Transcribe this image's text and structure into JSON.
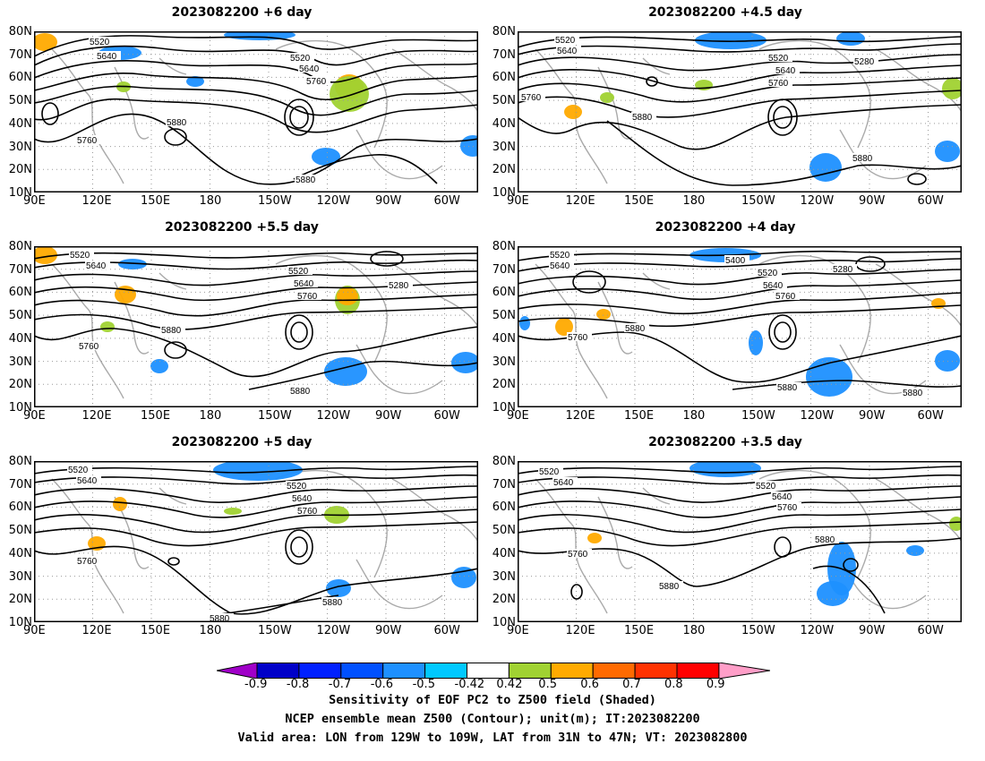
{
  "panels": [
    {
      "title": "2023082200 +6 day"
    },
    {
      "title": "2023082200 +4.5 day"
    },
    {
      "title": "2023082200 +5.5 day"
    },
    {
      "title": "2023082200 +4 day"
    },
    {
      "title": "2023082200 +5 day"
    },
    {
      "title": "2023082200 +3.5 day"
    }
  ],
  "axes": {
    "lat_labels": [
      "80N",
      "70N",
      "60N",
      "50N",
      "40N",
      "30N",
      "20N",
      "10N"
    ],
    "lon_labels": [
      "90E",
      "120E",
      "150E",
      "180",
      "150W",
      "120W",
      "90W",
      "60W"
    ]
  },
  "contour_labels": {
    "p0": [
      "5520",
      "5640",
      "5520",
      "5640",
      "5760",
      "5880",
      "5760",
      "5880"
    ],
    "p1": [
      "5520",
      "5640",
      "5520",
      "5640",
      "5760",
      "5280",
      "5760",
      "5880",
      "5880"
    ],
    "p2": [
      "5520",
      "5640",
      "5520",
      "5640",
      "5760",
      "5280",
      "5880",
      "5760",
      "5880"
    ],
    "p3": [
      "5520",
      "5640",
      "5400",
      "5520",
      "5640",
      "5760",
      "5280",
      "5880",
      "5760",
      "5880",
      "5880"
    ],
    "p4": [
      "5520",
      "5640",
      "5520",
      "5640",
      "5760",
      "5760",
      "5880",
      "5880"
    ],
    "p5": [
      "5520",
      "5640",
      "5520",
      "5640",
      "5760",
      "5760",
      "5880",
      "5880"
    ]
  },
  "colorbar": {
    "ticks": [
      "-0.9",
      "-0.8",
      "-0.7",
      "-0.6",
      "-0.5",
      "-0.42",
      "0.42",
      "0.5",
      "0.6",
      "0.7",
      "0.8",
      "0.9"
    ],
    "colors": [
      "#a000c8",
      "#0000c8",
      "#0020ff",
      "#0050ff",
      "#1e90ff",
      "#00c8ff",
      "#ffffff",
      "#a0d232",
      "#ffaa00",
      "#ff6a00",
      "#ff3200",
      "#ff0000",
      "#ff9ec8"
    ]
  },
  "caption": {
    "line1": "Sensitivity of EOF PC2 to Z500 field (Shaded)",
    "line2": "NCEP ensemble mean Z500 (Contour); unit(m); IT:2023082200",
    "line3": "Valid area: LON from 129W to 109W, LAT from 31N to 47N; VT: 2023082800"
  }
}
